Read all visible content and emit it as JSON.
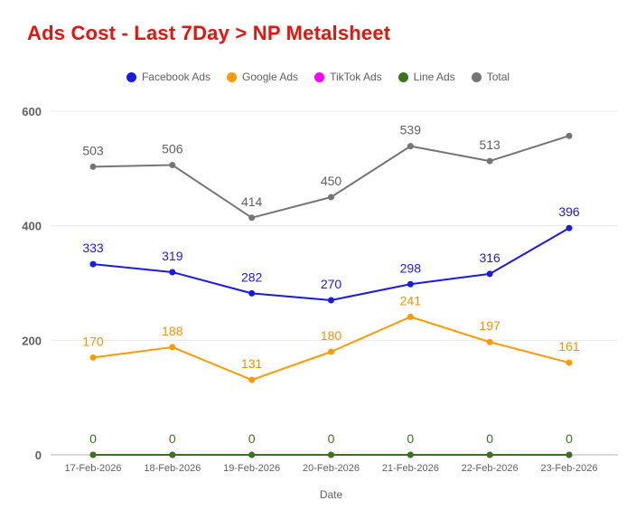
{
  "title": "Ads Cost - Last 7Day > NP Metalsheet",
  "title_color": "#e8130b",
  "legend": [
    {
      "label": "Facebook Ads",
      "color": "#1a1ae6"
    },
    {
      "label": "Google Ads",
      "color": "#ff9900"
    },
    {
      "label": "TikTok Ads",
      "color": "#ff00ff"
    },
    {
      "label": "Line Ads",
      "color": "#38761d"
    },
    {
      "label": "Total",
      "color": "#757575"
    }
  ],
  "chart_data": {
    "type": "line",
    "title": "Ads Cost - Last 7Day > NP Metalsheet",
    "x": [
      "17-Feb-2026",
      "18-Feb-2026",
      "19-Feb-2026",
      "20-Feb-2026",
      "21-Feb-2026",
      "22-Feb-2026",
      "23-Feb-2026"
    ],
    "xlabel": "Date",
    "ylabel": "",
    "ylim": [
      0,
      600
    ],
    "yticks": [
      0,
      200,
      400,
      600
    ],
    "grid": true,
    "legend_position": "top",
    "series": [
      {
        "name": "Facebook Ads",
        "color": "#1a1ae6",
        "label_color": "#1a1ae6",
        "values": [
          333,
          319,
          282,
          270,
          298,
          316,
          396
        ],
        "labels": [
          "333",
          "319",
          "282",
          "270",
          "298",
          "316",
          "396"
        ]
      },
      {
        "name": "Google Ads",
        "color": "#ff9900",
        "label_color": "#f09300",
        "values": [
          170,
          188,
          131,
          180,
          241,
          197,
          161
        ],
        "labels": [
          "170",
          "188",
          "131",
          "180",
          "241",
          "197",
          "161"
        ]
      },
      {
        "name": "TikTok Ads",
        "color": "#ff00ff",
        "label_color": "#ff00ff",
        "values": [
          0,
          0,
          0,
          0,
          0,
          0,
          0
        ],
        "labels": [
          "",
          "",
          "",
          "",
          "",
          "",
          ""
        ]
      },
      {
        "name": "Line Ads",
        "color": "#38761d",
        "label_color": "#38761d",
        "values": [
          0,
          0,
          0,
          0,
          0,
          0,
          0
        ],
        "labels": [
          "0",
          "0",
          "0",
          "0",
          "0",
          "0",
          "0"
        ]
      },
      {
        "name": "Total",
        "color": "#757575",
        "label_color": "#616161",
        "values": [
          503,
          506,
          414,
          450,
          539,
          513,
          557
        ],
        "labels": [
          "503",
          "506",
          "414",
          "450",
          "539",
          "513",
          ""
        ]
      }
    ]
  }
}
